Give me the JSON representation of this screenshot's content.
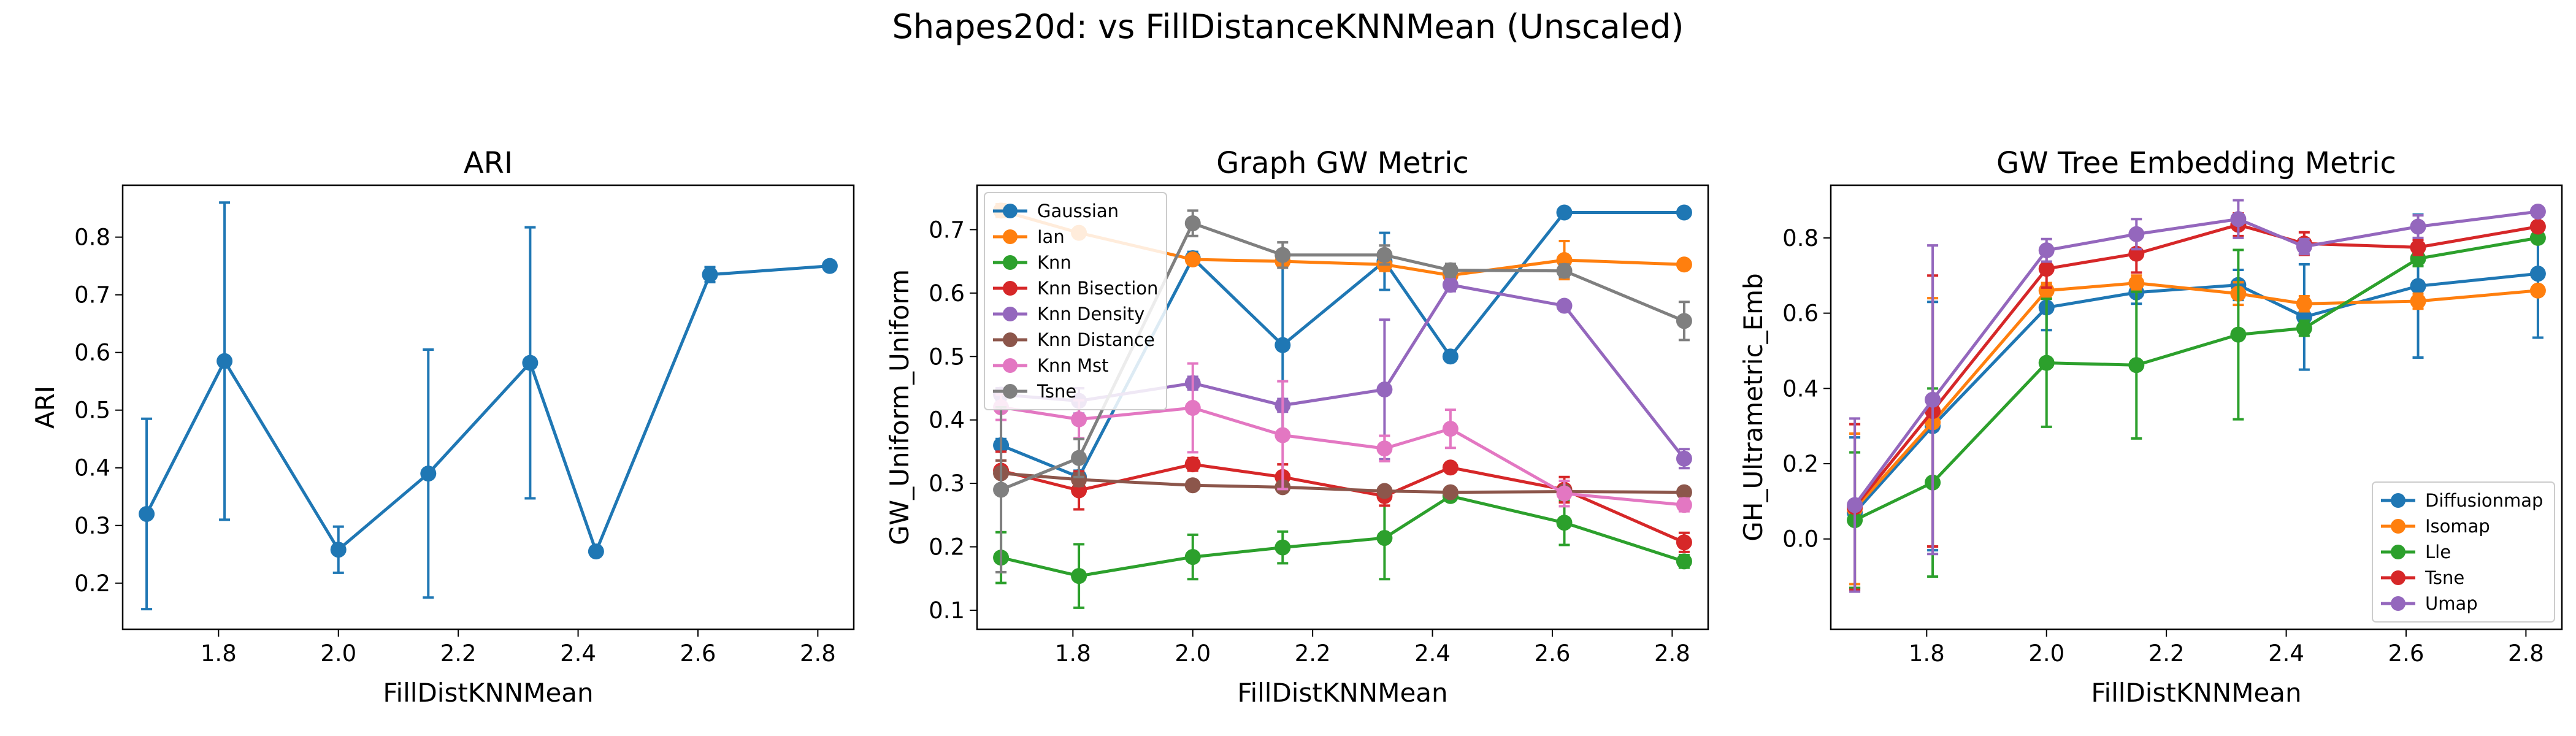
{
  "figure": {
    "suptitle": "Shapes20d: vs FillDistanceKNNMean (Unscaled)"
  },
  "chart_data": [
    {
      "type": "line",
      "title": "ARI",
      "xlabel": "FillDistKNNMean",
      "ylabel": "ARI",
      "xlim": [
        1.64,
        2.86
      ],
      "ylim": [
        0.12,
        0.89
      ],
      "xticks": [
        1.8,
        2.0,
        2.2,
        2.4,
        2.6,
        2.8
      ],
      "yticks": [
        0.2,
        0.3,
        0.4,
        0.5,
        0.6,
        0.7,
        0.8
      ],
      "grid": false,
      "legend": null,
      "x": [
        1.68,
        1.81,
        2.0,
        2.15,
        2.32,
        2.43,
        2.62,
        2.82
      ],
      "series": [
        {
          "color": "#1f77b4",
          "values": [
            0.32,
            0.585,
            0.258,
            0.39,
            0.582,
            0.255,
            0.735,
            0.75
          ],
          "errors": [
            0.165,
            0.275,
            0.04,
            0.215,
            0.235,
            0.008,
            0.013,
            0.006
          ]
        }
      ]
    },
    {
      "type": "line",
      "title": "Graph GW Metric",
      "xlabel": "FillDistKNNMean",
      "ylabel": "GW_Uniform_Uniform",
      "xlim": [
        1.64,
        2.86
      ],
      "ylim": [
        0.07,
        0.77
      ],
      "xticks": [
        1.8,
        2.0,
        2.2,
        2.4,
        2.6,
        2.8
      ],
      "yticks": [
        0.1,
        0.2,
        0.3,
        0.4,
        0.5,
        0.6,
        0.7
      ],
      "grid": false,
      "legend": "upper-left",
      "x": [
        1.68,
        1.81,
        2.0,
        2.15,
        2.32,
        2.43,
        2.62,
        2.82
      ],
      "series": [
        {
          "name": "Gaussian",
          "color": "#1f77b4",
          "values": [
            0.36,
            0.31,
            0.655,
            0.518,
            0.65,
            0.5,
            0.727,
            0.727
          ],
          "errors": [
            0.01,
            0.01,
            0.01,
            0.14,
            0.045,
            0.005,
            0.005,
            0.005
          ]
        },
        {
          "name": "Ian",
          "color": "#ff7f0e",
          "values": [
            0.73,
            0.695,
            0.653,
            0.65,
            0.645,
            0.628,
            0.652,
            0.645
          ],
          "errors": [
            0.01,
            0.005,
            0.005,
            0.005,
            0.01,
            0.01,
            0.03,
            0.005
          ]
        },
        {
          "name": "Knn",
          "color": "#2ca02c",
          "values": [
            0.183,
            0.154,
            0.184,
            0.199,
            0.214,
            0.28,
            0.238,
            0.177
          ],
          "errors": [
            0.04,
            0.05,
            0.035,
            0.025,
            0.065,
            0.005,
            0.035,
            0.01
          ]
        },
        {
          "name": "Knn Bisection",
          "color": "#d62728",
          "values": [
            0.32,
            0.289,
            0.33,
            0.31,
            0.28,
            0.325,
            0.29,
            0.207
          ],
          "errors": [
            0.03,
            0.03,
            0.01,
            0.02,
            0.015,
            0.005,
            0.02,
            0.015
          ]
        },
        {
          "name": "Knn Density",
          "color": "#9467bd",
          "values": [
            0.44,
            0.43,
            0.458,
            0.423,
            0.448,
            0.613,
            0.58,
            0.339
          ],
          "errors": [
            0.01,
            0.02,
            0.01,
            0.01,
            0.11,
            0.01,
            0.005,
            0.015
          ]
        },
        {
          "name": "Knn Distance",
          "color": "#8c564b",
          "values": [
            0.316,
            0.306,
            0.297,
            0.294,
            0.288,
            0.286,
            0.287,
            0.286
          ],
          "errors": [
            0.02,
            0.01,
            0.005,
            0.005,
            0.005,
            0.005,
            0.005,
            0.005
          ]
        },
        {
          "name": "Knn Mst",
          "color": "#e377c2",
          "values": [
            0.42,
            0.401,
            0.419,
            0.376,
            0.355,
            0.386,
            0.284,
            0.266
          ],
          "errors": [
            0.02,
            0.03,
            0.07,
            0.085,
            0.02,
            0.03,
            0.02,
            0.01
          ]
        },
        {
          "name": "Tsne",
          "color": "#7f7f7f",
          "values": [
            0.29,
            0.34,
            0.71,
            0.66,
            0.66,
            0.636,
            0.635,
            0.556
          ],
          "errors": [
            0.13,
            0.03,
            0.02,
            0.02,
            0.015,
            0.01,
            0.01,
            0.03
          ]
        }
      ]
    },
    {
      "type": "line",
      "title": "GW Tree Embedding Metric",
      "xlabel": "FillDistKNNMean",
      "ylabel": "GH_Ultrametric_Emb",
      "xlim": [
        1.64,
        2.86
      ],
      "ylim": [
        -0.24,
        0.94
      ],
      "xticks": [
        1.8,
        2.0,
        2.2,
        2.4,
        2.6,
        2.8
      ],
      "yticks": [
        0.0,
        0.2,
        0.4,
        0.6,
        0.8
      ],
      "grid": false,
      "legend": "lower-right",
      "x": [
        1.68,
        1.81,
        2.0,
        2.15,
        2.32,
        2.43,
        2.62,
        2.82
      ],
      "series": [
        {
          "name": "Diffusionmap",
          "color": "#1f77b4",
          "values": [
            0.07,
            0.3,
            0.615,
            0.655,
            0.675,
            0.59,
            0.672,
            0.705
          ],
          "errors": [
            0.2,
            0.33,
            0.06,
            0.03,
            0.04,
            0.14,
            0.19,
            0.17
          ]
        },
        {
          "name": "Isomap",
          "color": "#ff7f0e",
          "values": [
            0.08,
            0.31,
            0.66,
            0.68,
            0.652,
            0.625,
            0.632,
            0.66
          ],
          "errors": [
            0.2,
            0.33,
            0.02,
            0.02,
            0.03,
            0.02,
            0.02,
            0.01
          ]
        },
        {
          "name": "Lle",
          "color": "#2ca02c",
          "values": [
            0.05,
            0.15,
            0.468,
            0.462,
            0.543,
            0.56,
            0.745,
            0.8
          ],
          "errors": [
            0.18,
            0.25,
            0.17,
            0.195,
            0.225,
            0.02,
            0.02,
            0.01
          ]
        },
        {
          "name": "Tsne",
          "color": "#d62728",
          "values": [
            0.085,
            0.34,
            0.718,
            0.758,
            0.835,
            0.785,
            0.775,
            0.83
          ],
          "errors": [
            0.22,
            0.36,
            0.05,
            0.05,
            0.03,
            0.03,
            0.02,
            0.01
          ]
        },
        {
          "name": "Umap",
          "color": "#9467bd",
          "values": [
            0.09,
            0.37,
            0.767,
            0.81,
            0.85,
            0.777,
            0.83,
            0.87
          ],
          "errors": [
            0.23,
            0.41,
            0.03,
            0.04,
            0.05,
            0.02,
            0.03,
            0.01
          ]
        }
      ]
    }
  ]
}
